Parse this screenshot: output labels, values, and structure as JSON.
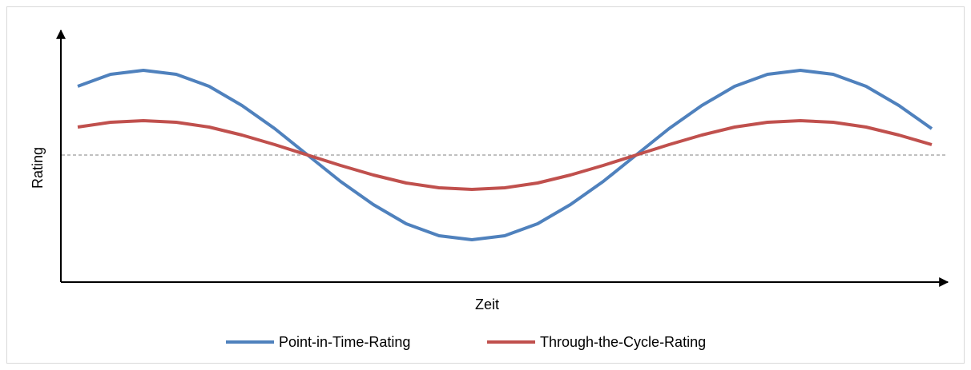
{
  "chart_data": {
    "type": "line",
    "x_label": "Zeit",
    "y_label": "Rating",
    "categories": [
      null,
      null,
      null,
      null,
      null,
      null,
      null,
      null,
      null,
      null,
      null,
      null,
      null,
      null,
      null,
      null,
      null,
      null,
      null,
      null,
      null,
      null,
      null,
      null,
      null,
      null,
      null
    ],
    "series": [
      {
        "name": "Point-in-Time-Rating",
        "color": "#4f81bd",
        "values": [
          86,
          101,
          106,
          101,
          86,
          62,
          33,
          0,
          -33,
          -62,
          -86,
          -101,
          -106,
          -101,
          -86,
          -62,
          -33,
          0,
          33,
          62,
          86,
          101,
          106,
          101,
          86,
          62,
          33
        ]
      },
      {
        "name": "Through-the-Cycle-Rating",
        "color": "#c0504d",
        "values": [
          35,
          41,
          43,
          41,
          35,
          25,
          13,
          0,
          -13,
          -25,
          -35,
          -41,
          -43,
          -41,
          -35,
          -25,
          -13,
          0,
          13,
          25,
          35,
          41,
          43,
          41,
          35,
          25,
          13
        ]
      }
    ],
    "ylim": [
      -159,
      154
    ],
    "reference_line": 0,
    "grid": false,
    "legend": "bottom"
  }
}
